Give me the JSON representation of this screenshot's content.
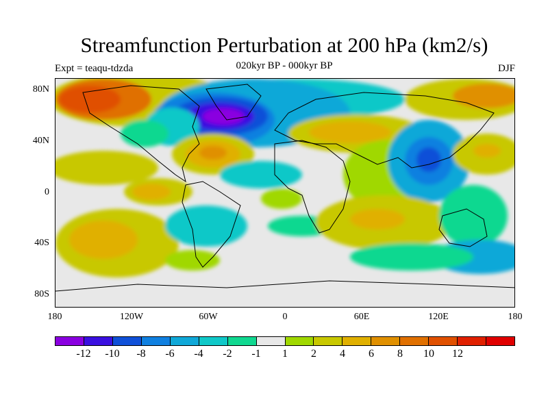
{
  "title": "Streamfunction Perturbation at 200 hPa (km2/s)",
  "subtitle": "020kyr BP - 000kyr BP",
  "expt_label": "Expt = teaqu-tdzda",
  "season": "DJF",
  "y_ticks": [
    "80N",
    "40N",
    "0",
    "40S",
    "80S"
  ],
  "x_ticks": [
    "180",
    "120W",
    "60W",
    "0",
    "60E",
    "120E",
    "180"
  ],
  "colorbar": {
    "colors": [
      "#8a00e0",
      "#3a10e0",
      "#1050d8",
      "#1080e0",
      "#10a8d8",
      "#10c8c8",
      "#10d890",
      "#e8e8e8",
      "#a0d800",
      "#c8c800",
      "#e0b000",
      "#e09000",
      "#e07000",
      "#e05000",
      "#e02000",
      "#e00000"
    ],
    "labels": [
      "-12",
      "-10",
      "-8",
      "-6",
      "-4",
      "-2",
      "-1",
      "1",
      "2",
      "4",
      "6",
      "8",
      "10",
      "12"
    ]
  },
  "map_colors": {
    "background": "#e8e8e8",
    "land": "#ffffff"
  }
}
